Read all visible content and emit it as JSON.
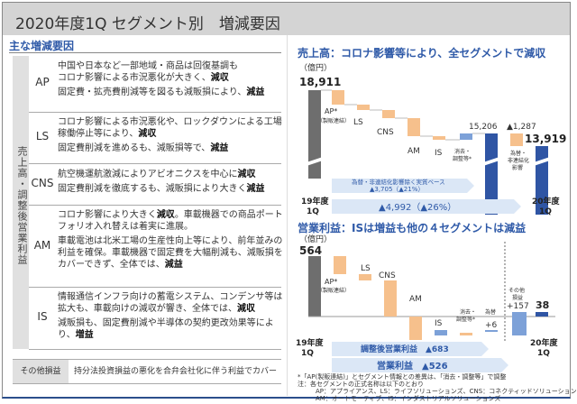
{
  "page": {
    "title": "2020年度1Q セグメント別　増減要因"
  },
  "left": {
    "section_title": "主な増減要因",
    "vertical_label": "売上高・調整後営業利益",
    "segments": [
      {
        "code": "AP",
        "lines": [
          "中国や日本など一部地域・商品は回復基調も",
          "コロナ影響による市況悪化が大きく、"
        ],
        "bold1": "減収",
        "line2": "固定費・拡売費削減等を図るも減販損により、",
        "bold2": "減益"
      },
      {
        "code": "LS",
        "lines": [
          "コロナ影響による市況悪化や、ロックダウンによる工場",
          "稼働停止等により、"
        ],
        "bold1": "減収",
        "line2": "固定費削減を進めるも、減販損等で、",
        "bold2": "減益"
      },
      {
        "code": "CNS",
        "lines": [
          "航空機運航激減によりアビオニクスを中心に"
        ],
        "bold1": "減収",
        "line2": "固定費削減を徹底するも、減販損により大きく",
        "bold2": "減益"
      },
      {
        "code": "AM",
        "lines": [
          "コロナ影響により大きく"
        ],
        "bold1": "減収",
        "after_bold1": "。車載機器での商品ポートフォリオ入れ替えは着実に進展。",
        "line2": "車載電池は北米工場の生産性向上等により、前年並みの利益を確保。車載機器で固定費を大幅削減も、減販損をカバーできず、全体では、",
        "bold2": "減益"
      },
      {
        "code": "IS",
        "lines": [
          "情報通信インフラ向けの蓄電システム、コンデンサ等は拡大も、車載向けの減収が響き、全体では、"
        ],
        "bold1": "減収",
        "line2": "減販損も、固定費削減や半導体の契約更改効果等により、",
        "bold2": "増益"
      }
    ],
    "other": {
      "label": "その他損益",
      "text": "持分法投資損益の悪化を合弁会社化に伴う利益でカバー"
    }
  },
  "sales_chart": {
    "title": "売上高：コロナ影響等により、全セグメントで減収",
    "unit": "（億円）",
    "start_label": "18,911",
    "start_period": [
      "19年度",
      "1Q"
    ],
    "end_period": [
      "20年度",
      "1Q"
    ],
    "seg_labels": {
      "ap": "AP*",
      "ap_sub": "（製販連結）",
      "ls": "LS",
      "cns": "CNS",
      "am": "AM",
      "is": "IS",
      "elim": [
        "消去・",
        "調整等*"
      ],
      "fx": [
        "為替・",
        "非連結化",
        "影響"
      ]
    },
    "sub_total": "15,206",
    "fx_delta": "▲1,287",
    "end_label": "13,919",
    "arrow1": [
      "為替・非連結化影響除く実質ベース",
      "▲3,705（▲21%）"
    ],
    "arrow2": "▲4,992（▲26%）"
  },
  "profit_chart": {
    "title": "営業利益：ISは増益も他の４セグメントは減益",
    "unit": "（億円）",
    "start_label": "564",
    "start_period": [
      "19年度",
      "1Q"
    ],
    "end_period": [
      "20年度",
      "1Q"
    ],
    "seg_labels": {
      "ap": "AP*",
      "ap_sub": "（製販連結）",
      "ls": "LS",
      "cns": "CNS",
      "am": "AM",
      "is": "IS",
      "elim": [
        "消去・",
        "調整等*"
      ],
      "fx": "為替",
      "other": [
        "その他",
        "損益"
      ]
    },
    "fx_delta": "+6",
    "other_delta": "+157",
    "end_label": "38",
    "arrow1": "調整後営業利益　▲683",
    "arrow2": "営業利益　▲526"
  },
  "footnotes": [
    "*「AP(製販連結)」とセグメント情報との差異は、「消去・調整等」で調整",
    "注：各セグメントの正式名称は以下のとおり",
    "AP：アプライアンス、LS：ライフソリューションズ、CNS：コネクティッドソリューションズ、",
    "AM：オートモーティブ、IS：インダストリアルソリューションズ"
  ],
  "colors": {
    "accent": "#2f5aa8",
    "gray_bar": "#6e6e6e",
    "orange": "#f6c08c",
    "blue_bar": "#2f55a4",
    "light_blue": "#7da1d8",
    "arrow": "#dbe7f6"
  }
}
